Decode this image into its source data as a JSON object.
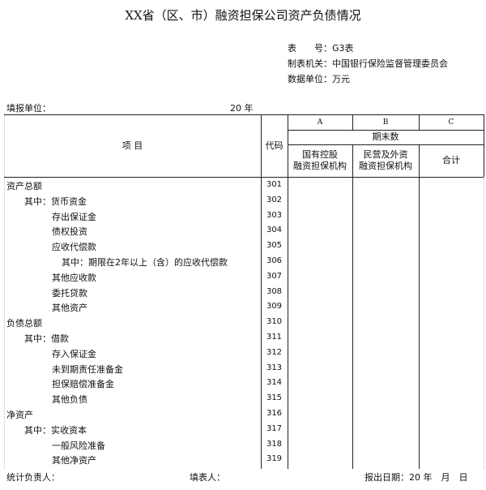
{
  "title": "XX省（区、市）融资担保公司资产负债情况",
  "meta": {
    "form_no": "表　　号：G3表",
    "issuer": "制表机关：中国银行保险监督管理委员会",
    "unit": "数据单位：万元"
  },
  "filler_unit": "填报单位：",
  "year": "20 年",
  "header": {
    "item": "项 目",
    "code": "代码",
    "col_a": "A",
    "col_b": "B",
    "col_c": "C",
    "period": "期末数",
    "a_label": "国有控股\n融资担保机构",
    "b_label": "民营及外资\n融资担保机构",
    "c_label": "合计"
  },
  "rows": [
    {
      "label": "资产总额",
      "code": "301",
      "level": 0
    },
    {
      "label": "其中：货币资金",
      "code": "302",
      "level": 1
    },
    {
      "label": "存出保证金",
      "code": "303",
      "level": 2
    },
    {
      "label": "债权投资",
      "code": "304",
      "level": 2
    },
    {
      "label": "应收代偿款",
      "code": "305",
      "level": 2
    },
    {
      "label": "其中：期限在2年以上（含）的应收代偿款",
      "code": "306",
      "level": 3
    },
    {
      "label": "其他应收款",
      "code": "307",
      "level": 2
    },
    {
      "label": "委托贷款",
      "code": "308",
      "level": 2
    },
    {
      "label": "其他资产",
      "code": "309",
      "level": 2
    },
    {
      "label": "负债总额",
      "code": "310",
      "level": 0
    },
    {
      "label": "其中：借款",
      "code": "311",
      "level": 1
    },
    {
      "label": "存入保证金",
      "code": "312",
      "level": 2
    },
    {
      "label": "未到期责任准备金",
      "code": "313",
      "level": 2
    },
    {
      "label": "担保赔偿准备金",
      "code": "314",
      "level": 2
    },
    {
      "label": "其他负债",
      "code": "315",
      "level": 2
    },
    {
      "label": "净资产",
      "code": "316",
      "level": 0
    },
    {
      "label": "其中：实收资本",
      "code": "317",
      "level": 1
    },
    {
      "label": "一般风险准备",
      "code": "318",
      "level": 2
    },
    {
      "label": "其他净资产",
      "code": "319",
      "level": 2
    }
  ],
  "footer": {
    "stat_head": "统计负责人：",
    "filler": "填表人：",
    "report_date": "报出日期：20 年　月　日"
  }
}
